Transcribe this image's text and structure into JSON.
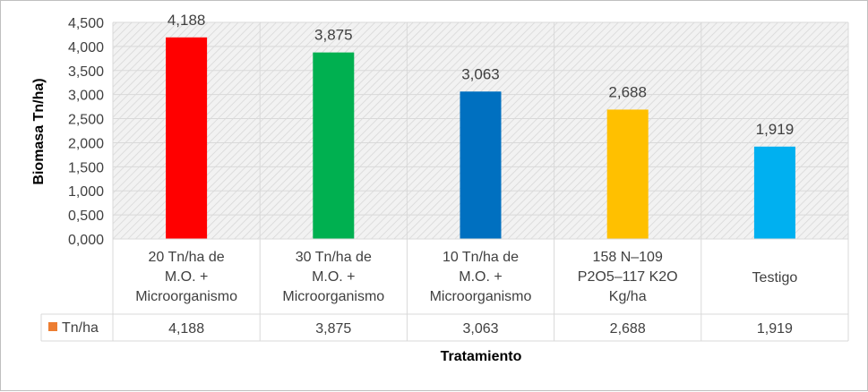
{
  "chart_data": {
    "type": "bar",
    "categories": [
      [
        "20 Tn/ha de",
        "M.O. +",
        "Microorganismo"
      ],
      [
        "30 Tn/ha de",
        "M.O. +",
        "Microorganismo"
      ],
      [
        "10 Tn/ha de",
        "M.O. +",
        "Microorganismo"
      ],
      [
        "158 N–109",
        "P2O5–117 K2O",
        "Kg/ha"
      ],
      [
        "Testigo"
      ]
    ],
    "series": [
      {
        "name": "Tn/ha",
        "values": [
          4.188,
          3.875,
          3.063,
          2.688,
          1.919
        ],
        "value_labels": [
          "4,188",
          "3,875",
          "3,063",
          "2,688",
          "1,919"
        ],
        "bar_colors": [
          "#ff0000",
          "#00b050",
          "#0070c0",
          "#ffc000",
          "#00b0f0"
        ],
        "legend_color": "#ed7d31"
      }
    ],
    "title": "",
    "xlabel": "Tratamiento",
    "ylabel": "Biomasa Tn/ha)",
    "ylim": [
      0,
      4.5
    ],
    "ytick_values": [
      0,
      0.5,
      1,
      1.5,
      2,
      2.5,
      3,
      3.5,
      4,
      4.5
    ],
    "ytick_labels": [
      "0,000",
      "0,500",
      "1,000",
      "1,500",
      "2,000",
      "2,500",
      "3,000",
      "3,500",
      "4,000",
      "4,500"
    ],
    "grid": true,
    "data_table": true,
    "plot_background": "hatched light gray"
  }
}
